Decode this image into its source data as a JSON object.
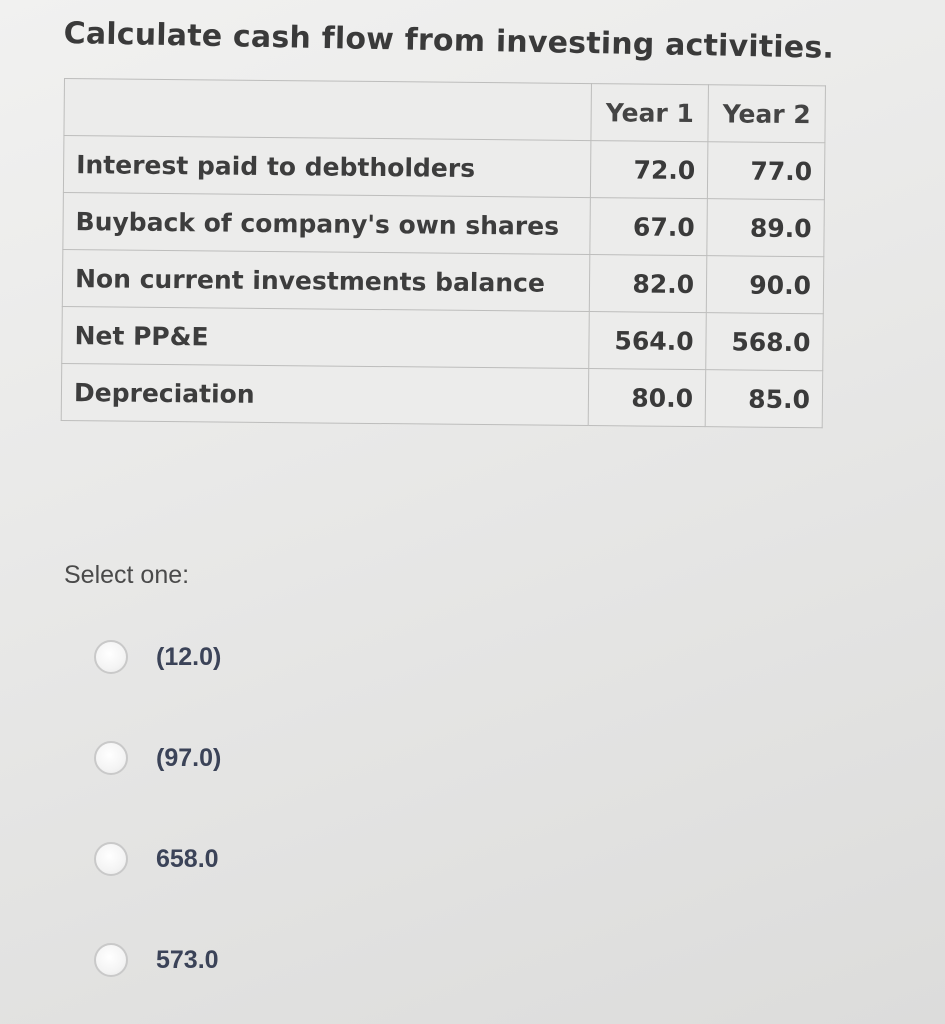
{
  "question": {
    "title": "Calculate cash flow from investing activities."
  },
  "table": {
    "headers": [
      "Year 1",
      "Year 2"
    ],
    "rows": [
      {
        "label": "Interest paid to debtholders",
        "year1": "72.0",
        "year2": "77.0"
      },
      {
        "label": "Buyback of company's own shares",
        "year1": "67.0",
        "year2": "89.0"
      },
      {
        "label": "Non current investments balance",
        "year1": "82.0",
        "year2": "90.0"
      },
      {
        "label": "Net PP&E",
        "year1": "564.0",
        "year2": "568.0"
      },
      {
        "label": "Depreciation",
        "year1": "80.0",
        "year2": "85.0"
      }
    ]
  },
  "answer": {
    "prompt": "Select one:",
    "options": [
      "(12.0)",
      "(97.0)",
      "658.0",
      "573.0"
    ]
  }
}
